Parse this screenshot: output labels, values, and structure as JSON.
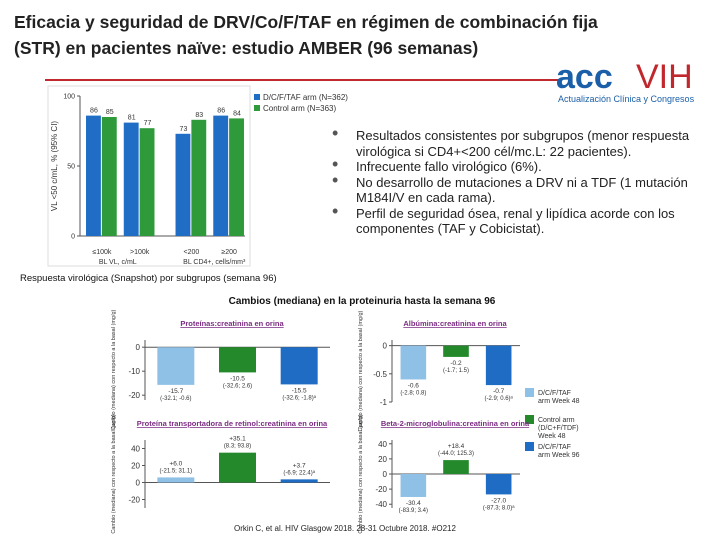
{
  "title": "Eficacia y seguridad de DRV/Co/F/TAF en régimen de combinación fija (STR) en pacientes naïve: estudio AMBER (96 semanas)",
  "logo": {
    "text_1": "acc",
    "text_2": "VIH",
    "tagline": "Actualización Clínica y Congresos"
  },
  "bullets": [
    "Resultados consistentes por subgrupos (menor respuesta virológica si CD4+<200 cél/mc.L: 22 pacientes).",
    "Infrecuente fallo virológico (6%).",
    "No desarrollo de mutaciones a DRV ni a TDF (1 mutación M184I/V en cada rama).",
    "Perfil de seguridad ósea, renal y lipídica acorde con los componentes (TAF y Cobicistat)."
  ],
  "subtitle": "Cambios (mediana) en la proteinuria hasta la semana 96",
  "footer": "Orkin C, et al. HIV Glasgow 2018. 28-31 Octubre 2018. #O212",
  "legend": [
    {
      "name": "D/C/F/TAF arm Week 48",
      "color": "#8fc1e6"
    },
    {
      "name": "Control arm (D/C+F/TDF) Week 48",
      "color": "#23892b"
    },
    {
      "name": "D/C/F/TAF arm Week 96",
      "color": "#1f6cc4"
    }
  ],
  "chart_data": [
    {
      "type": "bar",
      "caption": "Respuesta virológica (Snapshot) por subgrupos (semana 96)",
      "y_label": "VL <50 c/mL, % (95% CI)",
      "categories": [
        "≤100k",
        ">100k",
        "<200",
        "≥200"
      ],
      "group_labels": [
        "BL VL, c/mL",
        "BL CD4+, cells/mm³"
      ],
      "series": [
        {
          "name": "D/C/F/TAF arm (N=362)",
          "color": "#1f6dc5",
          "values": [
            86,
            81,
            73,
            86
          ]
        },
        {
          "name": "Control arm (N=363)",
          "color": "#2e9a3a",
          "values": [
            85,
            77,
            83,
            84
          ]
        }
      ],
      "ylim": [
        0,
        100
      ],
      "yticks": [
        0,
        50,
        100
      ]
    },
    {
      "type": "panel",
      "title": "Proteínas:creatinina en orina",
      "y_label": "Cambio (mediana) con respecto a la basal (mg/g)",
      "values": [
        -15.7,
        -10.5,
        -15.5
      ],
      "ci_labels": [
        "(-32.1; -0.6)",
        "(-32.6; 2.6)",
        "(-32.6; -1.8)ᵃ"
      ],
      "ylim": [
        -22,
        3
      ],
      "yticks": [
        -20,
        -10,
        0
      ]
    },
    {
      "type": "panel",
      "title": "Albúmina:creatinina en orina",
      "y_label": "Cambio (mediana) con respecto a la basal (mg/g)",
      "values": [
        -0.6,
        -0.2,
        -0.7
      ],
      "ci_labels": [
        "(-2.8; 0.8)",
        "(-1.7; 1.5)",
        "(-2.9; 0.6)ᵃ"
      ],
      "ylim": [
        -1,
        0.1
      ],
      "yticks": [
        -1,
        -0.5,
        0
      ]
    },
    {
      "type": "panel",
      "title": "Proteína transportadora de retinol:creatinina en orina",
      "y_label": "Cambio (mediana) con respecto a la basal (µg/g)",
      "values": [
        6.0,
        35.1,
        3.7
      ],
      "value_labels": [
        "+6.0",
        "+35.1",
        "+3.7"
      ],
      "ci_labels": [
        "(-21.5; 31.1)",
        "(8.3; 93.8)",
        "(-6.9; 22.4)ᵃ"
      ],
      "ylim": [
        -30,
        50
      ],
      "yticks": [
        -20,
        0,
        20,
        40
      ]
    },
    {
      "type": "panel",
      "title": "Beta-2-microglobulina:creatinina en orina",
      "y_label": "Cambio (mediana) con respecto a la basal (µg/g)",
      "values": [
        -30.4,
        18.4,
        -27.0
      ],
      "value_labels": [
        "-30.4",
        "+18.4",
        "-27.0"
      ],
      "ci_labels": [
        "(-83.9; 3.4)",
        "(-44.0; 125.3)",
        "(-87.3; 8.0)ᵃ"
      ],
      "ylim": [
        -45,
        45
      ],
      "yticks": [
        -40,
        -20,
        0,
        20,
        40
      ]
    }
  ]
}
